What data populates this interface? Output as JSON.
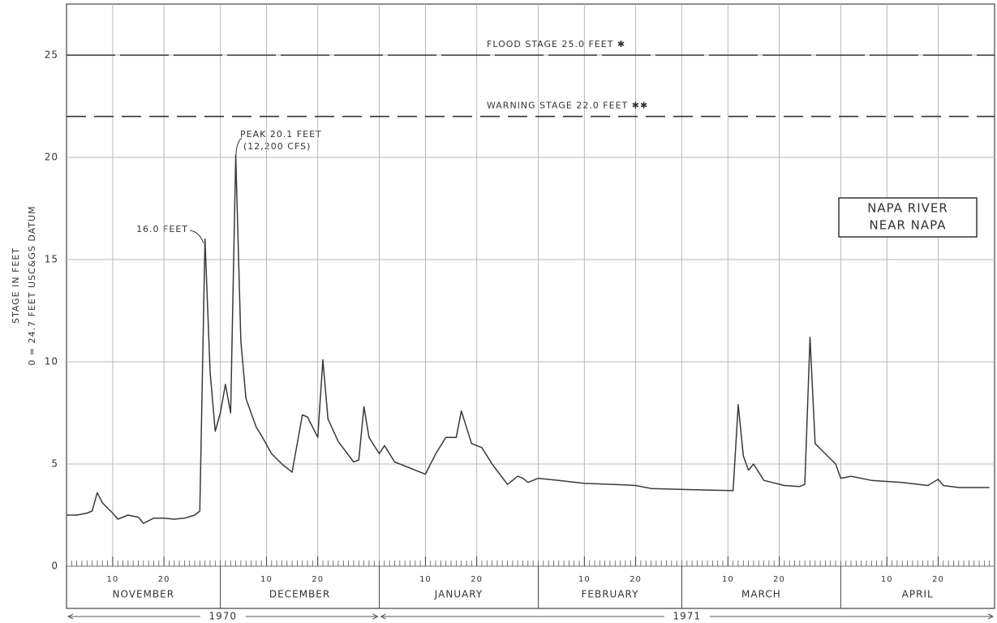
{
  "chart_data": {
    "type": "line",
    "title": [
      "NAPA RIVER",
      "NEAR NAPA"
    ],
    "y_label": [
      "STAGE IN FEET",
      "0 = 24.7 FEET USC&GS DATUM"
    ],
    "annotations": [
      "16.0 FEET",
      "PEAK 20.1 FEET",
      "(12,200 CFS)"
    ],
    "reference_lines": [
      {
        "value": 25,
        "label": "FLOOD STAGE 25.0 FEET ✱"
      },
      {
        "value": 22,
        "label": "WARNING STAGE 22.0 FEET ✱✱"
      }
    ],
    "ylim": [
      0,
      27.5
    ],
    "yticks": [
      0,
      5,
      10,
      15,
      20,
      25
    ],
    "grid": true,
    "xlim": [
      "1970-11-01",
      "1971-05-01"
    ],
    "xticks": [
      {
        "value": "1970-11-10",
        "label": "10"
      },
      {
        "value": "1970-11-20",
        "label": "20"
      },
      {
        "value": "1970-12-10",
        "label": "10"
      },
      {
        "value": "1970-12-20",
        "label": "20"
      },
      {
        "value": "1971-01-10",
        "label": "10"
      },
      {
        "value": "1971-01-20",
        "label": "20"
      },
      {
        "value": "1971-02-10",
        "label": "10"
      },
      {
        "value": "1971-02-20",
        "label": "20"
      },
      {
        "value": "1971-03-10",
        "label": "10"
      },
      {
        "value": "1971-03-20",
        "label": "20"
      },
      {
        "value": "1971-04-10",
        "label": "10"
      },
      {
        "value": "1971-04-20",
        "label": "20"
      }
    ],
    "months": [
      {
        "value": "1970-11-01",
        "label": "NOVEMBER"
      },
      {
        "value": "1970-12-01",
        "label": "DECEMBER"
      },
      {
        "value": "1971-01-01",
        "label": "JANUARY"
      },
      {
        "value": "1971-02-01",
        "label": "FEBRUARY"
      },
      {
        "value": "1971-03-01",
        "label": "MARCH"
      },
      {
        "value": "1971-04-01",
        "label": "APRIL"
      }
    ],
    "years": [
      {
        "label": "1970",
        "from": "1970-11-01",
        "to": "1971-01-01"
      },
      {
        "label": "1971",
        "from": "1971-01-01",
        "to": "1971-05-01"
      }
    ],
    "x": [
      "1970-11-01",
      "1970-11-03",
      "1970-11-05",
      "1970-11-06",
      "1970-11-07",
      "1970-11-08",
      "1970-11-10",
      "1970-11-11",
      "1970-11-13",
      "1970-11-15",
      "1970-11-16",
      "1970-11-18",
      "1970-11-20",
      "1970-11-22",
      "1970-11-24",
      "1970-11-26",
      "1970-11-27",
      "1970-11-28",
      "1970-11-29",
      "1970-11-30",
      "1970-12-01",
      "1970-12-02",
      "1970-12-03",
      "1970-12-04",
      "1970-12-05",
      "1970-12-06",
      "1970-12-08",
      "1970-12-09",
      "1970-12-11",
      "1970-12-13",
      "1970-12-15",
      "1970-12-17",
      "1970-12-18",
      "1970-12-20",
      "1970-12-21",
      "1970-12-22",
      "1970-12-24",
      "1970-12-27",
      "1970-12-28",
      "1970-12-29",
      "1970-12-30",
      "1971-01-01",
      "1971-01-02",
      "1971-01-04",
      "1971-01-07",
      "1971-01-10",
      "1971-01-12",
      "1971-01-14",
      "1971-01-16",
      "1971-01-17",
      "1971-01-19",
      "1971-01-21",
      "1971-01-23",
      "1971-01-26",
      "1971-01-28",
      "1971-01-29",
      "1971-01-30",
      "1971-02-01",
      "1971-02-05",
      "1971-02-10",
      "1971-02-16",
      "1971-02-20",
      "1971-02-23",
      "1971-03-02",
      "1971-03-11",
      "1971-03-12",
      "1971-03-13",
      "1971-03-14",
      "1971-03-15",
      "1971-03-17",
      "1971-03-21",
      "1971-03-24",
      "1971-03-25",
      "1971-03-26",
      "1971-03-27",
      "1971-03-29",
      "1971-03-31",
      "1971-04-01",
      "1971-04-03",
      "1971-04-07",
      "1971-04-13",
      "1971-04-18",
      "1971-04-20",
      "1971-04-21",
      "1971-04-24",
      "1971-04-30"
    ],
    "series": [
      {
        "name": "Stage",
        "color": "#3a3a3a",
        "values": [
          2.5,
          2.5,
          2.6,
          2.7,
          3.6,
          3.1,
          2.6,
          2.3,
          2.5,
          2.4,
          2.1,
          2.35,
          2.35,
          2.3,
          2.35,
          2.5,
          2.7,
          16.0,
          9.5,
          6.6,
          7.5,
          8.9,
          7.5,
          20.1,
          11,
          8.2,
          6.8,
          6.4,
          5.5,
          5.0,
          4.6,
          7.4,
          7.3,
          6.3,
          10.1,
          7.2,
          6.1,
          5.1,
          5.2,
          7.8,
          6.3,
          5.5,
          5.9,
          5.1,
          4.8,
          4.5,
          5.5,
          6.3,
          6.3,
          7.6,
          6.0,
          5.8,
          5.0,
          4.0,
          4.4,
          4.3,
          4.1,
          4.3,
          4.2,
          4.05,
          4.0,
          3.95,
          3.8,
          3.75,
          3.7,
          7.9,
          5.4,
          4.7,
          5.0,
          4.2,
          3.95,
          3.9,
          4.0,
          11.2,
          6.0,
          5.5,
          5.0,
          4.3,
          4.4,
          4.2,
          4.1,
          3.95,
          4.25,
          3.95,
          3.85,
          3.85
        ]
      }
    ]
  }
}
